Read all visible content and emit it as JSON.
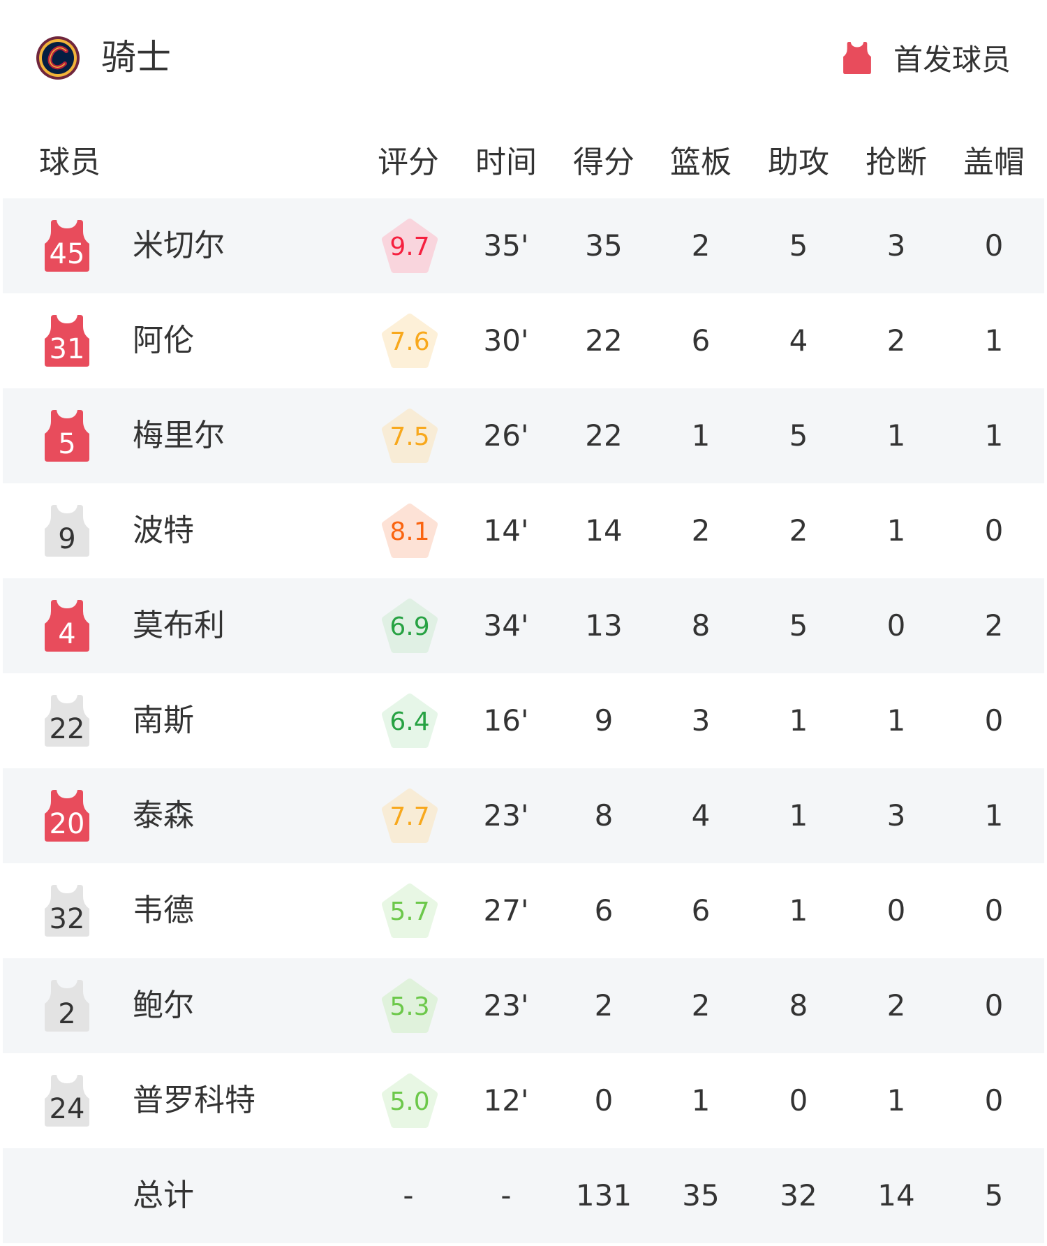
{
  "header": {
    "team_name": "骑士",
    "legend_label": "首发球员",
    "logo_icon": "cavaliers-logo"
  },
  "colors": {
    "starter": "#e84c5c",
    "bench": "#e3e3e3",
    "row_alt": "#f4f6f8"
  },
  "columns": [
    "球员",
    "评分",
    "时间",
    "得分",
    "篮板",
    "助攻",
    "抢断",
    "盖帽"
  ],
  "players": [
    {
      "number": "45",
      "name": "米切尔",
      "starter": true,
      "rating": "9.7",
      "rating_color": "#f5203f",
      "rating_bg": "#f9d5dd",
      "time": "35'",
      "pts": "35",
      "reb": "2",
      "ast": "5",
      "stl": "3",
      "blk": "0"
    },
    {
      "number": "31",
      "name": "阿伦",
      "starter": true,
      "rating": "7.6",
      "rating_color": "#f8a81c",
      "rating_bg": "#fdf0d8",
      "time": "30'",
      "pts": "22",
      "reb": "6",
      "ast": "4",
      "stl": "2",
      "blk": "1"
    },
    {
      "number": "5",
      "name": "梅里尔",
      "starter": true,
      "rating": "7.5",
      "rating_color": "#f8a81c",
      "rating_bg": "#f8ecd6",
      "time": "26'",
      "pts": "22",
      "reb": "1",
      "ast": "5",
      "stl": "1",
      "blk": "1"
    },
    {
      "number": "9",
      "name": "波特",
      "starter": false,
      "rating": "8.1",
      "rating_color": "#fa6410",
      "rating_bg": "#fde2d6",
      "time": "14'",
      "pts": "14",
      "reb": "2",
      "ast": "2",
      "stl": "1",
      "blk": "0"
    },
    {
      "number": "4",
      "name": "莫布利",
      "starter": true,
      "rating": "6.9",
      "rating_color": "#27a243",
      "rating_bg": "#e0f0e4",
      "time": "34'",
      "pts": "13",
      "reb": "8",
      "ast": "5",
      "stl": "0",
      "blk": "2"
    },
    {
      "number": "22",
      "name": "南斯",
      "starter": false,
      "rating": "6.4",
      "rating_color": "#27a243",
      "rating_bg": "#e6f6e8",
      "time": "16'",
      "pts": "9",
      "reb": "3",
      "ast": "1",
      "stl": "1",
      "blk": "0"
    },
    {
      "number": "20",
      "name": "泰森",
      "starter": true,
      "rating": "7.7",
      "rating_color": "#f8a81c",
      "rating_bg": "#f8ecd6",
      "time": "23'",
      "pts": "8",
      "reb": "4",
      "ast": "1",
      "stl": "3",
      "blk": "1"
    },
    {
      "number": "32",
      "name": "韦德",
      "starter": false,
      "rating": "5.7",
      "rating_color": "#6cc84a",
      "rating_bg": "#e8f7e4",
      "time": "27'",
      "pts": "6",
      "reb": "6",
      "ast": "1",
      "stl": "0",
      "blk": "0"
    },
    {
      "number": "2",
      "name": "鲍尔",
      "starter": false,
      "rating": "5.3",
      "rating_color": "#6cc84a",
      "rating_bg": "#e0f2dc",
      "time": "23'",
      "pts": "2",
      "reb": "2",
      "ast": "8",
      "stl": "2",
      "blk": "0"
    },
    {
      "number": "24",
      "name": "普罗科特",
      "starter": false,
      "rating": "5.0",
      "rating_color": "#6cc84a",
      "rating_bg": "#e8f7e4",
      "time": "12'",
      "pts": "0",
      "reb": "1",
      "ast": "0",
      "stl": "1",
      "blk": "0"
    }
  ],
  "totals": {
    "label": "总计",
    "rating": "-",
    "time": "-",
    "pts": "131",
    "reb": "35",
    "ast": "32",
    "stl": "14",
    "blk": "5"
  }
}
